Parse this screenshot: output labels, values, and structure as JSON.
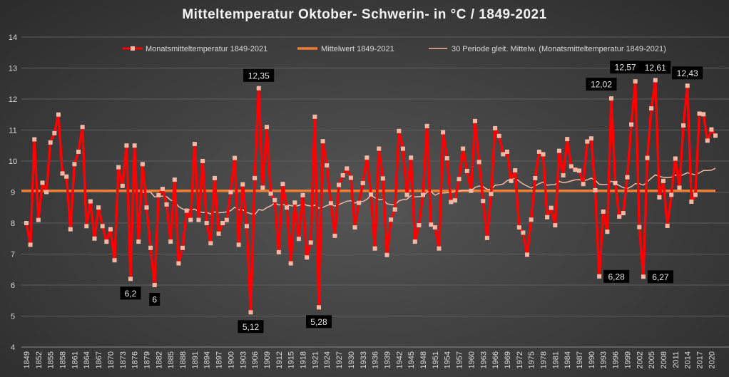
{
  "chart_data": {
    "type": "line",
    "title": "Mitteltemperatur Oktober- Schwerin- in °C / 1849-2021",
    "xlabel": "",
    "ylabel": "",
    "ylim": [
      4,
      14
    ],
    "yticks": [
      "4",
      "5",
      "6",
      "7",
      "8",
      "9",
      "10",
      "11",
      "12",
      "13",
      "14"
    ],
    "x_start": 1849,
    "x_end": 2021,
    "xtick_step": 3,
    "grid": true,
    "legend_position": "top",
    "colors": {
      "series": "#ff0000",
      "marker": "#f4b8a4",
      "mean": "#ed7d31",
      "moving": "#f4b8a4"
    },
    "series": [
      {
        "name": "Monatsmitteltemperatur 1849-2021",
        "values": [
          8.0,
          7.3,
          10.7,
          8.1,
          9.3,
          9.0,
          10.6,
          10.9,
          11.5,
          9.6,
          9.5,
          7.8,
          9.9,
          10.3,
          11.1,
          7.9,
          8.7,
          7.5,
          8.5,
          7.9,
          7.4,
          7.8,
          6.8,
          9.8,
          9.2,
          10.5,
          6.2,
          10.5,
          7.4,
          9.9,
          8.5,
          7.2,
          6.0,
          8.9,
          9.1,
          8.6,
          7.4,
          9.4,
          6.7,
          7.2,
          8.4,
          8.1,
          10.55,
          8.1,
          10.0,
          8.0,
          7.35,
          9.45,
          7.66,
          8.0,
          8.1,
          9.0,
          10.1,
          7.3,
          9.25,
          7.9,
          5.12,
          9.45,
          12.35,
          9.14,
          11.1,
          8.95,
          8.74,
          7.06,
          9.26,
          8.5,
          6.7,
          8.66,
          7.49,
          8.9,
          6.89,
          7.37,
          11.43,
          5.28,
          10.64,
          9.86,
          8.64,
          7.59,
          9.23,
          9.54,
          9.76,
          9.46,
          7.86,
          8.65,
          9.29,
          10.11,
          8.92,
          7.18,
          10.4,
          9.44,
          6.97,
          8.11,
          8.44,
          10.97,
          10.4,
          8.91,
          10.11,
          7.4,
          7.93,
          8.91,
          11.13,
          7.95,
          7.86,
          7.18,
          10.93,
          10.09,
          8.68,
          8.73,
          9.42,
          10.4,
          9.68,
          9.04,
          11.29,
          9.97,
          8.71,
          7.52,
          8.94,
          11.06,
          10.81,
          10.22,
          10.3,
          9.36,
          9.7,
          7.86,
          7.69,
          6.98,
          8.11,
          9.45,
          10.3,
          10.22,
          8.19,
          8.49,
          7.93,
          10.33,
          9.54,
          10.71,
          9.83,
          9.72,
          9.69,
          9.26,
          10.63,
          10.73,
          9.06,
          6.28,
          8.37,
          7.72,
          12.02,
          9.29,
          8.21,
          8.32,
          9.48,
          11.18,
          12.57,
          7.87,
          6.27,
          10.1,
          11.7,
          12.61,
          8.83,
          9.36,
          7.91,
          8.91,
          10.08,
          9.14,
          11.15,
          12.43,
          8.69,
          8.91,
          11.53,
          11.51,
          10.66,
          11.02,
          10.82
        ]
      },
      {
        "name": "Mittelwert 1849-2021",
        "value": 9.04
      },
      {
        "name": "30 Periode gleit. Mittelw. (Monatsmitteltemperatur 1849-2021)",
        "period": 30
      }
    ],
    "data_labels": [
      {
        "year": 1875,
        "text": "6,2",
        "pos": "below"
      },
      {
        "year": 1881,
        "text": "6",
        "pos": "below"
      },
      {
        "year": 1905,
        "text": "5,12",
        "pos": "below"
      },
      {
        "year": 1907,
        "text": "12,35",
        "pos": "above"
      },
      {
        "year": 1922,
        "text": "5,28",
        "pos": "below"
      },
      {
        "year": 1992,
        "text": "6,28",
        "pos": "right"
      },
      {
        "year": 1995,
        "text": "12,02",
        "pos": "above-left"
      },
      {
        "year": 2001,
        "text": "12,57",
        "pos": "above-left"
      },
      {
        "year": 2003,
        "text": "6,27",
        "pos": "right"
      },
      {
        "year": 2006,
        "text": "12,61",
        "pos": "above"
      },
      {
        "year": 2014,
        "text": "12,43",
        "pos": "above"
      }
    ]
  }
}
